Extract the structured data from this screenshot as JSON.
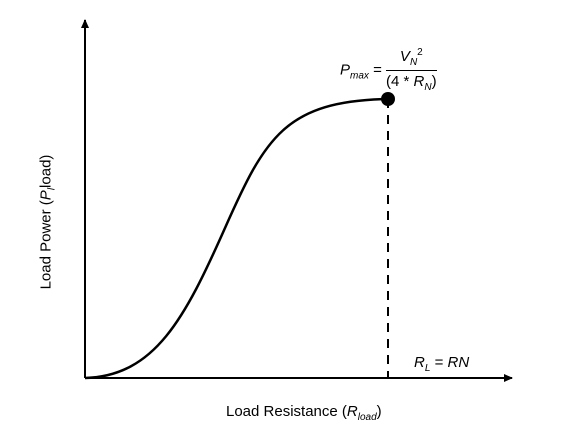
{
  "chart_data": {
    "type": "line",
    "x_axis_label": {
      "prefix": "Load Resistance (",
      "var": "R",
      "sub": "load",
      "suffix": ")"
    },
    "y_axis_label": {
      "prefix": "Load Power  (",
      "var": "P",
      "sub": "l",
      "rest": "load",
      "suffix": ")"
    },
    "curve": {
      "shape": "sigmoid",
      "x": [
        0,
        0.1,
        0.2,
        0.3,
        0.4,
        0.5,
        0.6,
        0.7,
        0.8,
        0.9,
        1.0
      ],
      "y": [
        0,
        0.03,
        0.12,
        0.3,
        0.55,
        0.75,
        0.88,
        0.95,
        0.985,
        0.998,
        1.0
      ]
    },
    "peak": {
      "x": 1.0,
      "y": 1.0,
      "marker": "filled-circle",
      "dashed_drop_line": true
    },
    "pmax_annotation": {
      "lhs_var": "P",
      "lhs_sub": "max",
      "equals": "=",
      "num_var": "V",
      "num_sub": "N",
      "num_sup": "2",
      "den_prefix": "(4 * ",
      "den_var": "R",
      "den_sub": "N",
      "den_suffix": ")"
    },
    "rl_annotation": {
      "var": "R",
      "sub": "L",
      "equals": " = ",
      "rhs": "RN"
    },
    "grid": false,
    "axis_ticks": false
  },
  "colors": {
    "line": "#000000",
    "background": "#ffffff"
  }
}
